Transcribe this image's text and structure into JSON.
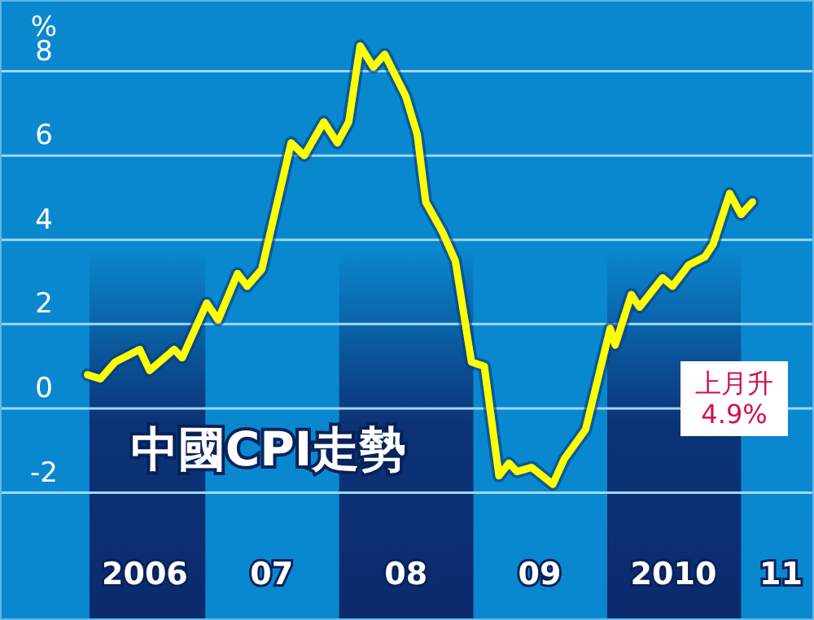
{
  "chart_data": {
    "type": "line",
    "title": "中國CPI走勢",
    "ylabel": "%",
    "x": [
      "2006-02-14",
      "2006-03-21",
      "2006-04-30",
      "2006-07-06",
      "2006-08-02",
      "2006-10-08",
      "2006-10-30",
      "2007-01-05",
      "2007-02-05",
      "2007-03-30",
      "2007-04-25",
      "2007-06-04",
      "2007-08-23",
      "2007-09-28",
      "2007-11-20",
      "2007-12-27",
      "2008-01-27",
      "2008-02-27",
      "2008-04-03",
      "2008-05-04",
      "2008-07-01",
      "2008-08-01",
      "2008-08-24",
      "2008-10-08",
      "2008-11-13",
      "2008-12-27",
      "2009-01-31",
      "2009-03-12",
      "2009-04-08",
      "2009-04-30",
      "2009-06-09",
      "2009-08-06",
      "2009-09-06",
      "2009-11-03",
      "2010-01-09",
      "2010-01-23",
      "2010-03-08",
      "2010-03-30",
      "2010-06-01",
      "2010-06-28",
      "2010-08-11",
      "2010-09-25",
      "2010-10-17",
      "2010-12-01",
      "2011-01-01",
      "2011-02-01"
    ],
    "series": [
      {
        "color": "#ffff00",
        "values": [
          0.8,
          0.7,
          1.1,
          1.4,
          0.9,
          1.4,
          1.2,
          2.5,
          2.1,
          3.2,
          2.9,
          3.3,
          6.3,
          6.0,
          6.8,
          6.3,
          6.8,
          8.6,
          8.1,
          8.4,
          7.4,
          6.5,
          4.9,
          4.2,
          3.5,
          1.1,
          1.0,
          -1.6,
          -1.3,
          -1.5,
          -1.4,
          -1.8,
          -1.2,
          -0.5,
          1.9,
          1.5,
          2.7,
          2.4,
          3.1,
          2.9,
          3.4,
          3.6,
          3.9,
          5.1,
          4.6,
          4.9
        ]
      }
    ],
    "xlim": [
      "2005-06-20",
      "2011-07-19"
    ],
    "xticks": [
      {
        "value": "2006-07-20",
        "label": "2006"
      },
      {
        "value": "2007-07-01",
        "label": "07"
      },
      {
        "value": "2008-07-01",
        "label": "08"
      },
      {
        "value": "2009-07-01",
        "label": "09"
      },
      {
        "value": "2010-07-01",
        "label": "2010"
      },
      {
        "value": "2011-04-20",
        "label": "11"
      }
    ],
    "ylim": [
      -5.02,
      9.69
    ],
    "yticks": [
      -2,
      0,
      2,
      4,
      6,
      8
    ],
    "grid": "y",
    "marker": "none",
    "line_style": "solid",
    "bands": [
      {
        "axis": "x",
        "from": "2006-02-19",
        "to": "2007-01-01",
        "color": "#0c2a6e"
      },
      {
        "axis": "x",
        "from": "2008-01-01",
        "to": "2009-01-01",
        "color": "#0c2a6e"
      },
      {
        "axis": "x",
        "from": "2010-01-01",
        "to": "2011-01-01",
        "color": "#0c2a6e"
      }
    ],
    "annotations": [
      "上月升\n4.9%"
    ]
  }
}
